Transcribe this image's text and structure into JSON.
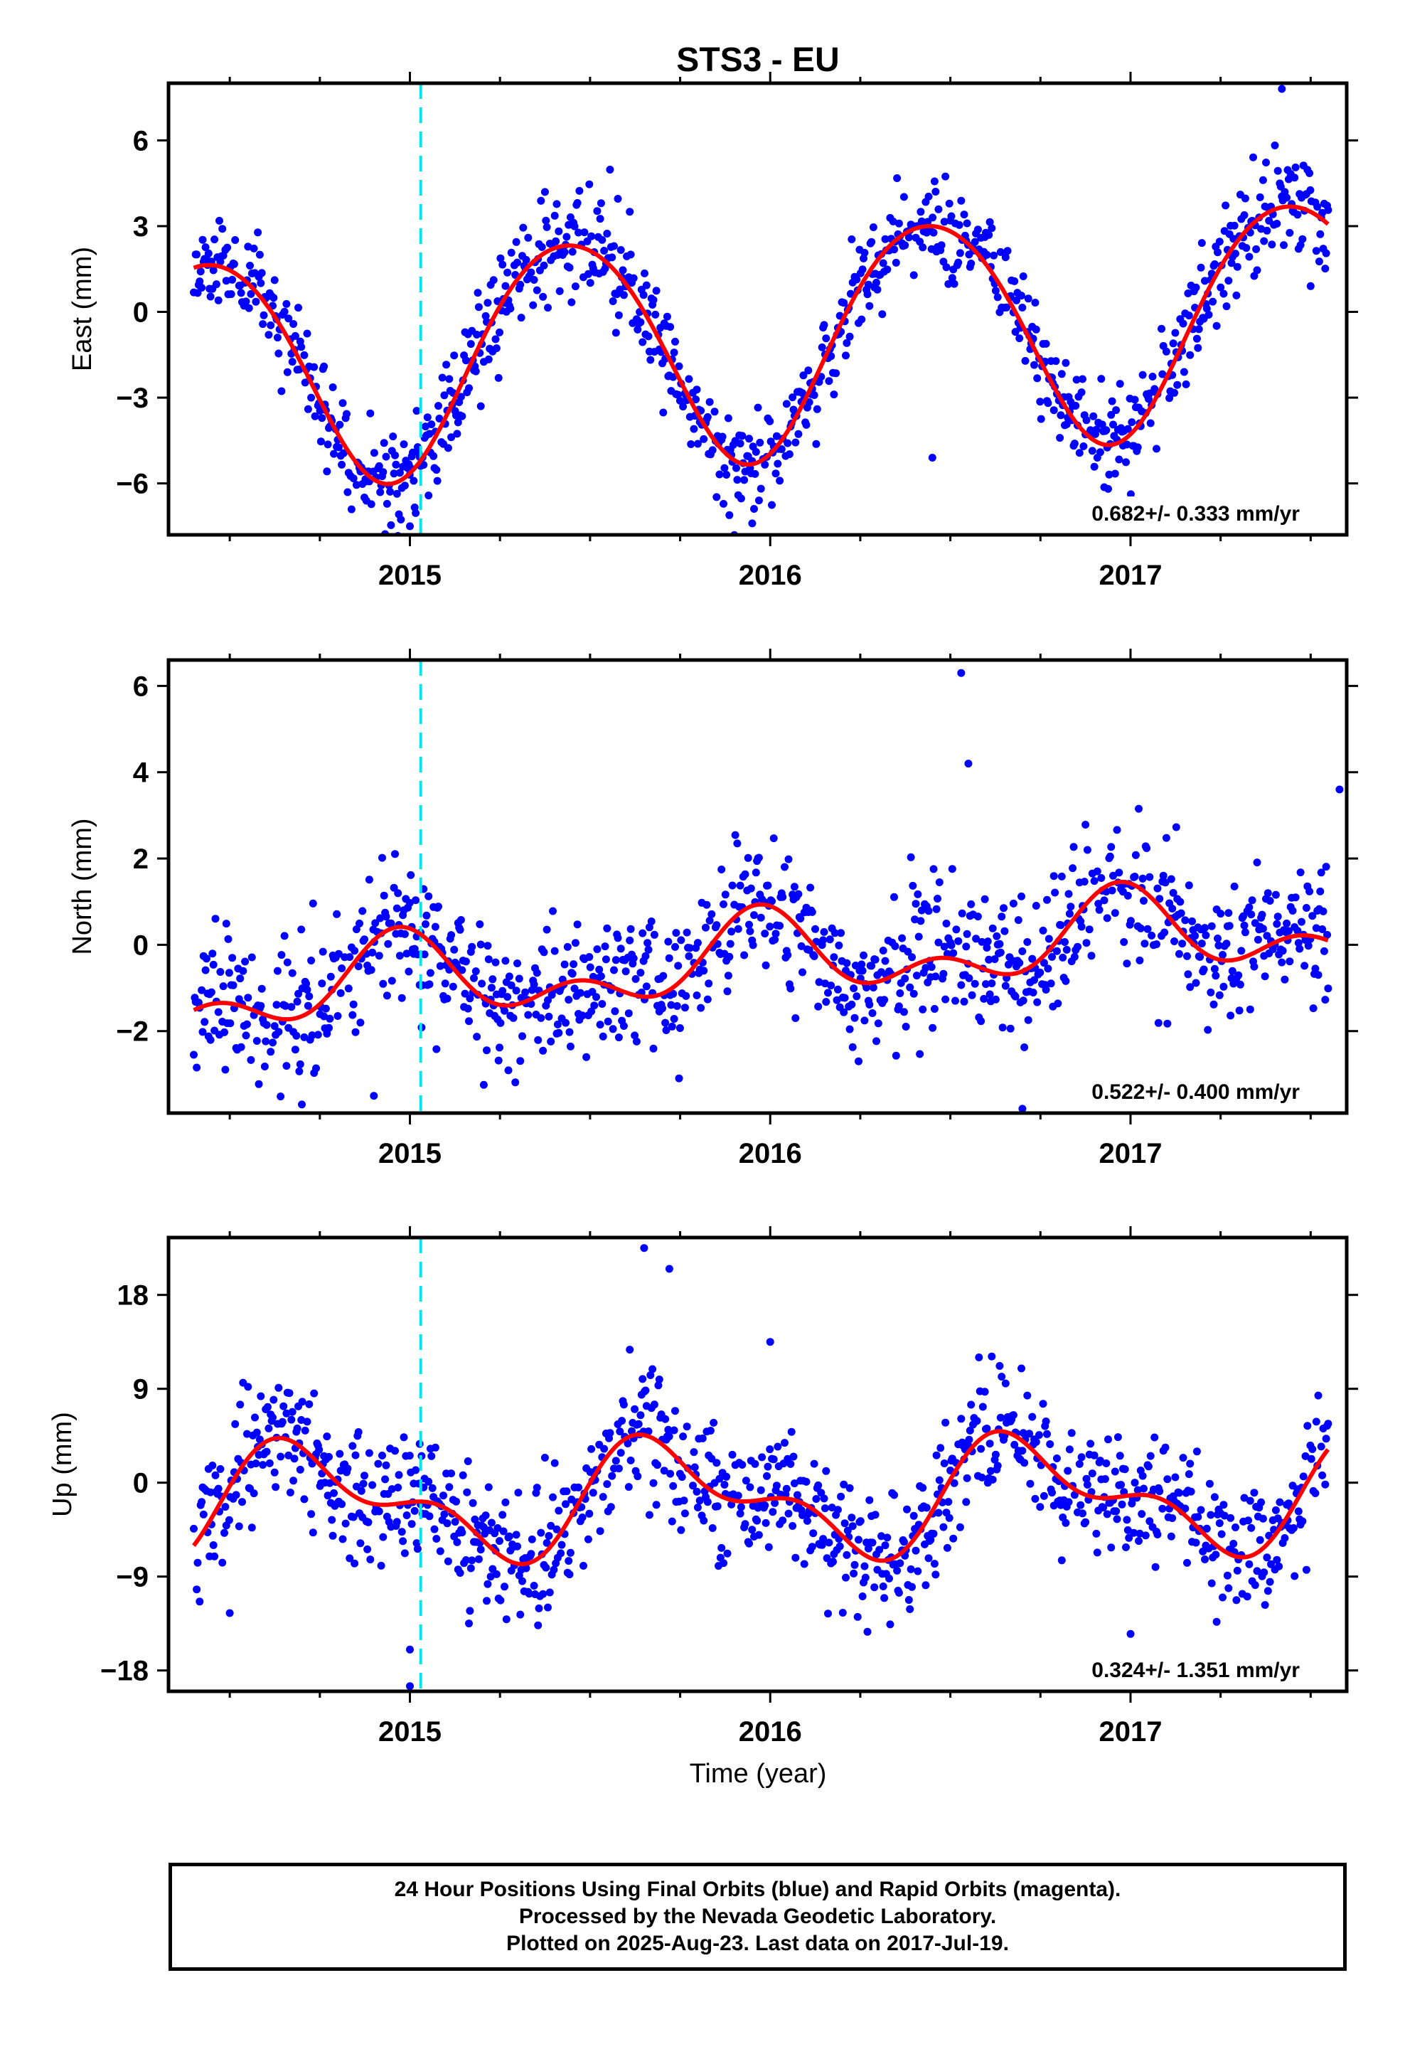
{
  "title": "STS3 - EU",
  "chart_data": [
    {
      "type": "scatter",
      "ylabel": "East (mm)",
      "ylim": [
        -7.8,
        8.0
      ],
      "yticks": [
        -6,
        -3,
        0,
        3,
        6
      ],
      "xlim": [
        2014.33,
        2017.6
      ],
      "xticks": [
        2015,
        2016,
        2017
      ],
      "marker_line_x": 2015.03,
      "rate": "0.682+/- 0.333 mm/yr",
      "model": {
        "offset": -1.0,
        "trend": 0.682,
        "amplitude": 4.0,
        "peak": 2015.44,
        "semi_amplitude": 0.3,
        "semi_peak": 2015.2
      },
      "noise": 0.9,
      "seed": 11,
      "outliers": [
        [
          2015.0,
          -7.5
        ],
        [
          2015.95,
          -7.4
        ],
        [
          2016.45,
          -5.1
        ],
        [
          2017.42,
          7.8
        ],
        [
          2017.5,
          0.9
        ]
      ]
    },
    {
      "type": "scatter",
      "ylabel": "North (mm)",
      "ylim": [
        -3.9,
        6.6
      ],
      "yticks": [
        -2,
        0,
        2,
        4,
        6
      ],
      "xlim": [
        2014.33,
        2017.6
      ],
      "xticks": [
        2015,
        2016,
        2017
      ],
      "marker_line_x": 2015.03,
      "rate": "0.522+/- 0.400 mm/yr",
      "model": {
        "offset": -0.35,
        "trend": 0.522,
        "amplitude": 0.75,
        "peak": 2014.97,
        "semi_amplitude": 0.55,
        "semi_peak": 2014.97
      },
      "noise": 0.8,
      "seed": 23,
      "outliers": [
        [
          2016.53,
          6.3
        ],
        [
          2016.55,
          4.2
        ],
        [
          2014.7,
          -3.7
        ],
        [
          2014.9,
          -3.5
        ],
        [
          2016.7,
          -3.8
        ],
        [
          2017.58,
          3.6
        ]
      ]
    },
    {
      "type": "scatter",
      "ylabel": "Up (mm)",
      "ylim": [
        -20.0,
        23.5
      ],
      "yticks": [
        -18,
        -9,
        0,
        9,
        18
      ],
      "xlim": [
        2014.33,
        2017.6
      ],
      "xticks": [
        2015,
        2016,
        2017
      ],
      "marker_line_x": 2015.03,
      "rate": "0.324+/- 1.351 mm/yr",
      "model": {
        "offset": -1.5,
        "trend": 0.324,
        "amplitude": 4.5,
        "peak": 2015.72,
        "semi_amplitude": 2.6,
        "semi_peak": 2015.6
      },
      "noise": 3.0,
      "seed": 37,
      "outliers": [
        [
          2015.65,
          22.5
        ],
        [
          2015.72,
          20.5
        ],
        [
          2015.0,
          -19.5
        ],
        [
          2016.0,
          13.5
        ],
        [
          2017.0,
          -14.5
        ],
        [
          2014.5,
          -12.5
        ],
        [
          2015.0,
          -16.0
        ]
      ]
    }
  ],
  "xlabel": "Time (year)",
  "colors": {
    "points": "#0000ff",
    "model": "#ff0000",
    "event_line": "#00e5e5"
  },
  "footer": [
    "24 Hour Positions Using Final Orbits (blue) and Rapid Orbits (magenta).",
    "Processed by the Nevada Geodetic Laboratory.",
    "Plotted on 2025-Aug-23. Last data on 2017-Jul-19."
  ]
}
